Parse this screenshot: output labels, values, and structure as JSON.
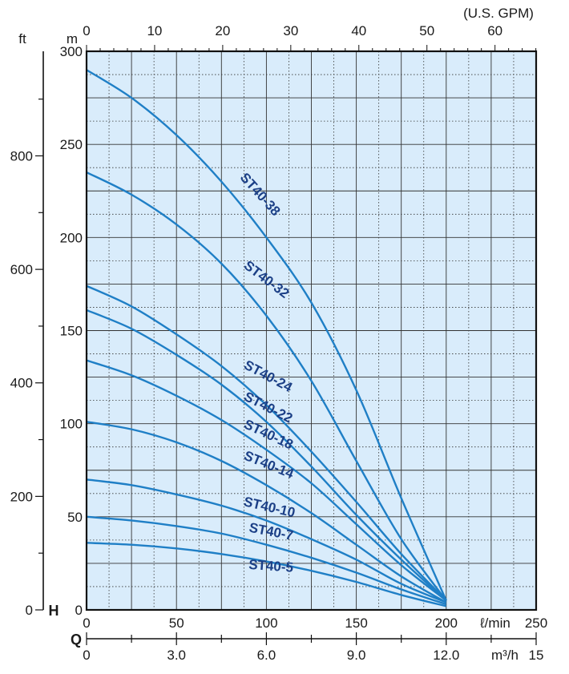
{
  "colors": {
    "plot_bg": "#d9ecfb",
    "curve": "#1f7fc6",
    "curve_label": "#1b3f86",
    "grid_major": "#333333",
    "grid_minor": "#333333"
  },
  "axes": {
    "ft_unit": "ft",
    "m_unit": "m",
    "gpm_unit": "(U.S. GPM)",
    "h_label": "H",
    "q_label": "Q",
    "lmin_unit": "ℓ/min",
    "m3h_unit": "m³/h",
    "ft_ticks": [
      "0",
      "200",
      "400",
      "600",
      "800"
    ],
    "m_ticks": [
      "0",
      "50",
      "100",
      "150",
      "200",
      "250",
      "300"
    ],
    "lmin_ticks": [
      "0",
      "50",
      "100",
      "150",
      "200",
      "250"
    ],
    "gpm_ticks": [
      "0",
      "10",
      "20",
      "30",
      "40",
      "50",
      "60"
    ],
    "m3h_ticks": [
      "0",
      "3.0",
      "6.0",
      "9.0",
      "12.0",
      "15"
    ]
  },
  "chart_data": {
    "type": "line",
    "xlabel": "ℓ/min",
    "ylabel": "m",
    "xlim": [
      0,
      250
    ],
    "ylim": [
      0,
      300
    ],
    "grid": true,
    "series": [
      {
        "name": "ST40-38",
        "x": [
          0,
          25,
          50,
          75,
          100,
          125,
          150,
          175,
          200
        ],
        "y": [
          290,
          275,
          255,
          230,
          200,
          165,
          118,
          60,
          5
        ]
      },
      {
        "name": "ST40-32",
        "x": [
          0,
          25,
          50,
          75,
          100,
          125,
          150,
          175,
          200
        ],
        "y": [
          235,
          223,
          207,
          186,
          158,
          123,
          80,
          38,
          5
        ]
      },
      {
        "name": "ST40-24",
        "x": [
          0,
          25,
          50,
          75,
          100,
          125,
          150,
          175,
          200
        ],
        "y": [
          174,
          163,
          148,
          131,
          110,
          85,
          58,
          30,
          5
        ]
      },
      {
        "name": "ST40-22",
        "x": [
          0,
          25,
          50,
          75,
          100,
          125,
          150,
          175,
          200
        ],
        "y": [
          161,
          151,
          137,
          121,
          101,
          77,
          51,
          27,
          5
        ]
      },
      {
        "name": "ST40-18",
        "x": [
          0,
          25,
          50,
          75,
          100,
          125,
          150,
          175,
          200
        ],
        "y": [
          134,
          126,
          115,
          102,
          86,
          68,
          46,
          24,
          5
        ]
      },
      {
        "name": "ST40-14",
        "x": [
          0,
          25,
          50,
          75,
          100,
          125,
          150,
          175,
          200
        ],
        "y": [
          101,
          97,
          90,
          80,
          67,
          52,
          35,
          18,
          4
        ]
      },
      {
        "name": "ST40-10",
        "x": [
          0,
          25,
          50,
          75,
          100,
          125,
          150,
          175,
          200
        ],
        "y": [
          70,
          67,
          62,
          56,
          48,
          38,
          27,
          14,
          4
        ]
      },
      {
        "name": "ST40-7",
        "x": [
          0,
          25,
          50,
          75,
          100,
          125,
          150,
          175,
          200
        ],
        "y": [
          50,
          48,
          45,
          41,
          35,
          28,
          20,
          11,
          3
        ]
      },
      {
        "name": "ST40-5",
        "x": [
          0,
          25,
          50,
          75,
          100,
          125,
          150,
          175,
          200
        ],
        "y": [
          36,
          35,
          33,
          30,
          26,
          21,
          15,
          8,
          2
        ]
      }
    ]
  }
}
